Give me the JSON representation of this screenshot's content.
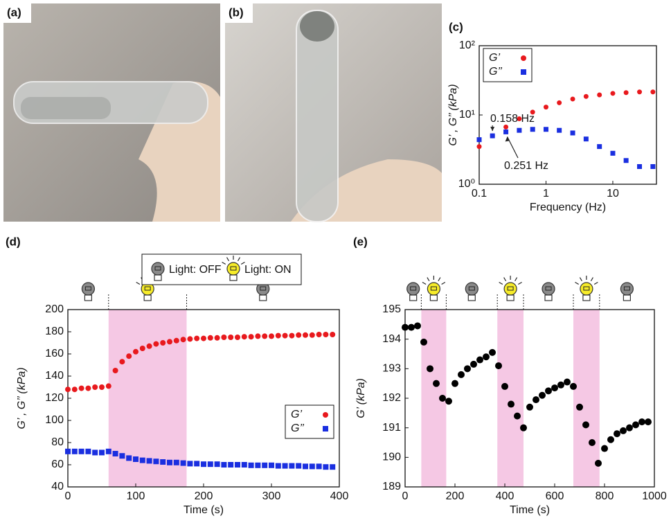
{
  "panel_labels": [
    "(a)",
    "(b)"
  ],
  "chart_data": [
    {
      "type": "scatter",
      "label": "(c)",
      "xlabel": "Frequency (Hz)",
      "ylabel": "G’ , G’’ (kPa)",
      "xscale": "log",
      "yscale": "log",
      "xlim": [
        0.1,
        45
      ],
      "xticks": [
        0.1,
        1,
        10
      ],
      "ylim": [
        1,
        100
      ],
      "yticks": [
        {
          "value": 1,
          "label": "10⁰"
        },
        {
          "value": 10,
          "label": "10¹"
        },
        {
          "value": 100,
          "label": "10²"
        }
      ],
      "legend": "upper left",
      "x": [
        0.1,
        0.158,
        0.251,
        0.398,
        0.631,
        1,
        1.58,
        2.51,
        3.98,
        6.31,
        10,
        15.8,
        25.1,
        39.8
      ],
      "series": [
        {
          "name": "G’",
          "color": "#e8191d",
          "marker": "circle",
          "values": [
            3.5,
            5,
            6.7,
            8.8,
            11,
            13,
            15,
            17,
            18.5,
            19.5,
            20.5,
            21,
            21.5,
            21.5
          ]
        },
        {
          "name": "G’’",
          "color": "#1a2fe0",
          "marker": "square",
          "values": [
            4.4,
            5,
            5.7,
            6,
            6.2,
            6.2,
            6,
            5.5,
            4.5,
            3.5,
            2.8,
            2.2,
            1.8,
            1.8
          ]
        }
      ],
      "annotations": [
        "0.158 Hz",
        "0.251 Hz"
      ]
    },
    {
      "type": "scatter",
      "label": "(d)",
      "xlabel": "Time (s)",
      "ylabel": "G’ , G’’ (kPa)",
      "xlim": [
        0,
        400
      ],
      "xticks": [
        0,
        100,
        200,
        300,
        400
      ],
      "ylim": [
        40,
        200
      ],
      "yticks": [
        40,
        60,
        80,
        100,
        120,
        140,
        160,
        180,
        200
      ],
      "legend": "center right",
      "light_labels": [
        "Light: OFF",
        "Light: ON"
      ],
      "light_on_intervals": [
        [
          60,
          175
        ]
      ],
      "x": [
        0,
        10,
        20,
        30,
        40,
        50,
        60,
        70,
        80,
        90,
        100,
        110,
        120,
        130,
        140,
        150,
        160,
        170,
        180,
        190,
        200,
        210,
        220,
        230,
        240,
        250,
        260,
        270,
        280,
        290,
        300,
        310,
        320,
        330,
        340,
        350,
        360,
        370,
        380,
        390
      ],
      "series": [
        {
          "name": "G’",
          "color": "#e8191d",
          "marker": "circle",
          "values": [
            128,
            128,
            129,
            129,
            130,
            130,
            131,
            145,
            153,
            158,
            162,
            165,
            167,
            169,
            170,
            171,
            172,
            173,
            173.5,
            174,
            174,
            174.5,
            174.5,
            175,
            175,
            175,
            175.5,
            175.5,
            176,
            176,
            176,
            176.5,
            176.5,
            176.5,
            177,
            177,
            177,
            177.5,
            177.5,
            177.5
          ]
        },
        {
          "name": "G’’",
          "color": "#1a2fe0",
          "marker": "square",
          "values": [
            72,
            72,
            72,
            72,
            71,
            71,
            72,
            70,
            68,
            66,
            65,
            64,
            63.5,
            63,
            62.5,
            62,
            62,
            61.5,
            61,
            61,
            60.5,
            60.5,
            60.5,
            60,
            60,
            60,
            60,
            59.5,
            59.5,
            59.5,
            59.5,
            59,
            59,
            59,
            59,
            58.5,
            58.5,
            58.5,
            58,
            58
          ]
        }
      ]
    },
    {
      "type": "scatter",
      "label": "(e)",
      "xlabel": "Time (s)",
      "ylabel": "G’ (kPa)",
      "xlim": [
        0,
        1000
      ],
      "xticks": [
        0,
        200,
        400,
        600,
        800,
        1000
      ],
      "ylim": [
        189,
        195
      ],
      "yticks": [
        189,
        190,
        191,
        192,
        193,
        194,
        195
      ],
      "light_on_intervals": [
        [
          65,
          165
        ],
        [
          370,
          475
        ],
        [
          675,
          780
        ]
      ],
      "x": [
        0,
        25,
        50,
        75,
        100,
        125,
        150,
        175,
        200,
        225,
        250,
        275,
        300,
        325,
        350,
        375,
        400,
        425,
        450,
        475,
        500,
        525,
        550,
        575,
        600,
        625,
        650,
        675,
        700,
        725,
        750,
        775,
        800,
        825,
        850,
        875,
        900,
        925,
        950,
        975
      ],
      "series": [
        {
          "color": "#000000",
          "marker": "circle",
          "values": [
            194.4,
            194.4,
            194.45,
            193.9,
            193.0,
            192.5,
            192.0,
            191.9,
            192.5,
            192.8,
            193.0,
            193.15,
            193.3,
            193.4,
            193.55,
            193.1,
            192.4,
            191.8,
            191.4,
            191.0,
            191.7,
            191.95,
            192.1,
            192.25,
            192.35,
            192.45,
            192.55,
            192.4,
            191.7,
            191.1,
            190.5,
            189.8,
            190.3,
            190.6,
            190.8,
            190.9,
            191.0,
            191.1,
            191.2,
            191.2
          ]
        }
      ]
    }
  ]
}
